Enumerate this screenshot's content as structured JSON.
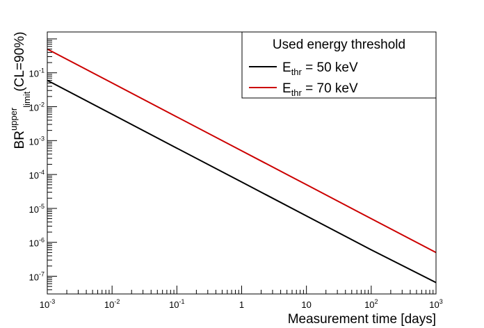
{
  "chart_data": {
    "type": "line",
    "x_scale": "log",
    "y_scale": "log",
    "xlim": [
      0.001,
      1000
    ],
    "ylim": [
      3e-08,
      1.6
    ],
    "xlabel": "Measurement time [days]",
    "ylabel": {
      "main": "BR",
      "superscript": "upper",
      "subscript": "limit",
      "suffix": "(CL=90%)"
    },
    "x_ticks": [
      {
        "value": 0.001,
        "base": "10",
        "exp": "-3"
      },
      {
        "value": 0.01,
        "base": "10",
        "exp": "-2"
      },
      {
        "value": 0.1,
        "base": "10",
        "exp": "-1"
      },
      {
        "value": 1,
        "base": "1",
        "exp": ""
      },
      {
        "value": 10,
        "base": "10",
        "exp": ""
      },
      {
        "value": 100,
        "base": "10",
        "exp": "2"
      },
      {
        "value": 1000,
        "base": "10",
        "exp": "3"
      }
    ],
    "y_ticks": [
      {
        "value": 1e-07,
        "base": "10",
        "exp": "-7"
      },
      {
        "value": 1e-06,
        "base": "10",
        "exp": "-6"
      },
      {
        "value": 1e-05,
        "base": "10",
        "exp": "-5"
      },
      {
        "value": 0.0001,
        "base": "10",
        "exp": "-4"
      },
      {
        "value": 0.001,
        "base": "10",
        "exp": "-3"
      },
      {
        "value": 0.01,
        "base": "10",
        "exp": "-2"
      },
      {
        "value": 0.1,
        "base": "10",
        "exp": "-1"
      }
    ],
    "legend": {
      "title": "Used energy threshold",
      "placement": "top-right"
    },
    "series": [
      {
        "label_main": "E",
        "label_sub": "thr",
        "label_rest": " = 50 keV",
        "color": "#000000",
        "x": [
          0.001,
          0.01,
          0.1,
          1,
          10,
          100,
          1000
        ],
        "y": [
          0.06,
          0.006,
          0.0006,
          6e-05,
          6e-06,
          6e-07,
          6.5e-08
        ]
      },
      {
        "label_main": "E",
        "label_sub": "thr",
        "label_rest": " = 70 keV",
        "color": "#cc0000",
        "x": [
          0.001,
          0.01,
          0.1,
          1,
          10,
          100,
          1000
        ],
        "y": [
          0.5,
          0.05,
          0.005,
          0.0005,
          5e-05,
          5e-06,
          5e-07
        ]
      }
    ]
  }
}
